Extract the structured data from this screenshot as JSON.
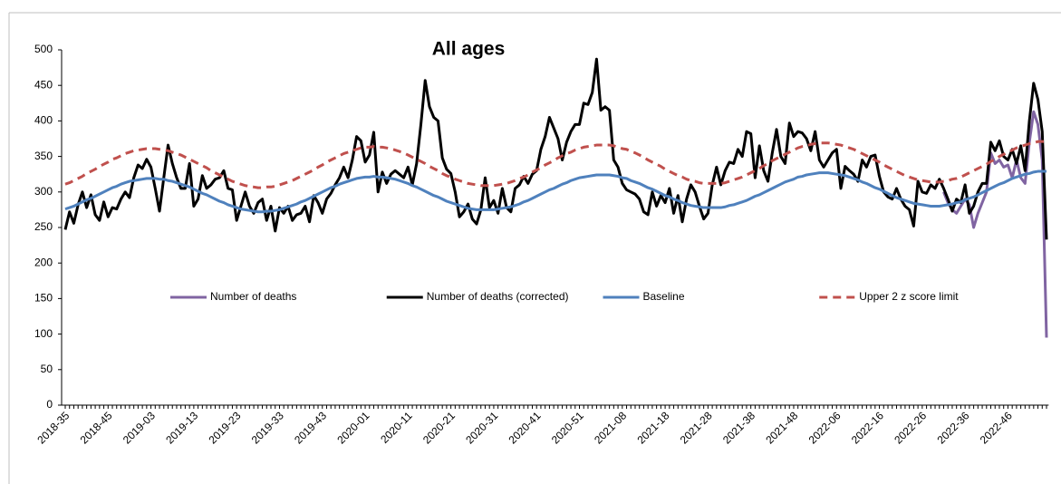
{
  "chart_data": {
    "type": "line",
    "title": "All ages",
    "categories": [
      "2018-35",
      null,
      null,
      null,
      null,
      null,
      null,
      null,
      null,
      null,
      "2018-45",
      null,
      null,
      null,
      null,
      null,
      null,
      null,
      null,
      null,
      "2019-03",
      null,
      null,
      null,
      null,
      null,
      null,
      null,
      null,
      null,
      "2019-13",
      null,
      null,
      null,
      null,
      null,
      null,
      null,
      null,
      null,
      "2019-23",
      null,
      null,
      null,
      null,
      null,
      null,
      null,
      null,
      null,
      "2019-33",
      null,
      null,
      null,
      null,
      null,
      null,
      null,
      null,
      null,
      "2019-43",
      null,
      null,
      null,
      null,
      null,
      null,
      null,
      null,
      null,
      "2020-01",
      null,
      null,
      null,
      null,
      null,
      null,
      null,
      null,
      null,
      "2020-11",
      null,
      null,
      null,
      null,
      null,
      null,
      null,
      null,
      null,
      "2020-21",
      null,
      null,
      null,
      null,
      null,
      null,
      null,
      null,
      null,
      "2020-31",
      null,
      null,
      null,
      null,
      null,
      null,
      null,
      null,
      null,
      "2020-41",
      null,
      null,
      null,
      null,
      null,
      null,
      null,
      null,
      null,
      "2020-51",
      null,
      null,
      null,
      null,
      null,
      null,
      null,
      null,
      null,
      "2021-08",
      null,
      null,
      null,
      null,
      null,
      null,
      null,
      null,
      null,
      "2021-18",
      null,
      null,
      null,
      null,
      null,
      null,
      null,
      null,
      null,
      "2021-28",
      null,
      null,
      null,
      null,
      null,
      null,
      null,
      null,
      null,
      "2021-38",
      null,
      null,
      null,
      null,
      null,
      null,
      null,
      null,
      null,
      "2021-48",
      null,
      null,
      null,
      null,
      null,
      null,
      null,
      null,
      null,
      "2022-06",
      null,
      null,
      null,
      null,
      null,
      null,
      null,
      null,
      null,
      "2022-16",
      null,
      null,
      null,
      null,
      null,
      null,
      null,
      null,
      null,
      "2022-26",
      null,
      null,
      null,
      null,
      null,
      null,
      null,
      null,
      null,
      "2022-36",
      null,
      null,
      null,
      null,
      null,
      null,
      null,
      null,
      null,
      "2022-46",
      null,
      null,
      null,
      null,
      null,
      null,
      null,
      null,
      null
    ],
    "series": [
      {
        "name": "Number of deaths",
        "color": "#8064a2",
        "style": "solid",
        "values": [
          null,
          null,
          null,
          null,
          null,
          null,
          null,
          null,
          null,
          null,
          null,
          null,
          null,
          null,
          null,
          null,
          null,
          null,
          null,
          null,
          null,
          null,
          null,
          null,
          null,
          null,
          null,
          null,
          null,
          null,
          null,
          null,
          null,
          null,
          null,
          null,
          null,
          null,
          null,
          null,
          null,
          null,
          null,
          null,
          null,
          null,
          null,
          null,
          null,
          null,
          null,
          null,
          null,
          null,
          null,
          null,
          null,
          null,
          null,
          null,
          null,
          null,
          null,
          null,
          null,
          null,
          null,
          null,
          null,
          null,
          null,
          null,
          null,
          null,
          null,
          null,
          null,
          null,
          null,
          null,
          null,
          null,
          null,
          null,
          null,
          null,
          null,
          null,
          null,
          null,
          null,
          null,
          null,
          null,
          null,
          null,
          null,
          null,
          null,
          null,
          null,
          null,
          null,
          null,
          null,
          null,
          null,
          null,
          null,
          null,
          null,
          null,
          null,
          null,
          null,
          null,
          null,
          null,
          null,
          null,
          null,
          null,
          null,
          null,
          null,
          null,
          null,
          null,
          null,
          null,
          null,
          null,
          null,
          null,
          null,
          null,
          null,
          null,
          null,
          null,
          null,
          null,
          null,
          null,
          null,
          null,
          null,
          null,
          null,
          null,
          null,
          null,
          null,
          null,
          null,
          null,
          null,
          null,
          null,
          null,
          null,
          null,
          null,
          null,
          null,
          null,
          null,
          null,
          null,
          null,
          null,
          null,
          null,
          null,
          null,
          null,
          null,
          null,
          null,
          null,
          null,
          null,
          null,
          null,
          null,
          null,
          null,
          null,
          null,
          null,
          null,
          null,
          null,
          null,
          null,
          null,
          null,
          null,
          null,
          null,
          null,
          null,
          null,
          null,
          null,
          300,
          285,
          275,
          270,
          280,
          290,
          282,
          250,
          270,
          285,
          300,
          355,
          340,
          345,
          335,
          338,
          320,
          345,
          320,
          312,
          370,
          413,
          395,
          345,
          95
        ]
      },
      {
        "name": "Number of deaths (corrected)",
        "color": "#000000",
        "style": "solid",
        "values": [
          247,
          272,
          256,
          282,
          300,
          278,
          296,
          268,
          260,
          286,
          265,
          278,
          276,
          290,
          300,
          292,
          320,
          338,
          333,
          346,
          335,
          305,
          273,
          320,
          366,
          340,
          320,
          305,
          305,
          340,
          280,
          290,
          323,
          305,
          310,
          318,
          320,
          330,
          305,
          303,
          260,
          280,
          300,
          280,
          270,
          285,
          290,
          260,
          280,
          245,
          278,
          270,
          280,
          260,
          268,
          270,
          280,
          258,
          295,
          285,
          270,
          290,
          298,
          310,
          320,
          335,
          320,
          345,
          378,
          372,
          342,
          352,
          384,
          300,
          328,
          312,
          325,
          330,
          325,
          320,
          335,
          310,
          340,
          395,
          457,
          420,
          405,
          400,
          348,
          332,
          326,
          300,
          265,
          272,
          283,
          262,
          255,
          275,
          320,
          278,
          288,
          270,
          305,
          278,
          272,
          305,
          310,
          322,
          312,
          325,
          330,
          360,
          378,
          405,
          390,
          375,
          345,
          370,
          385,
          395,
          395,
          425,
          423,
          440,
          487,
          415,
          420,
          415,
          345,
          335,
          312,
          303,
          300,
          297,
          290,
          272,
          268,
          300,
          280,
          295,
          285,
          305,
          270,
          295,
          258,
          290,
          310,
          300,
          280,
          262,
          270,
          310,
          335,
          310,
          330,
          342,
          340,
          360,
          350,
          385,
          382,
          320,
          365,
          330,
          315,
          355,
          388,
          350,
          340,
          397,
          378,
          385,
          383,
          375,
          358,
          385,
          345,
          335,
          345,
          355,
          360,
          305,
          336,
          330,
          325,
          315,
          345,
          335,
          350,
          352,
          322,
          300,
          293,
          290,
          305,
          290,
          280,
          275,
          252,
          315,
          300,
          298,
          310,
          305,
          318,
          305,
          290,
          273,
          290,
          285,
          310,
          270,
          280,
          300,
          312,
          312,
          370,
          358,
          372,
          350,
          345,
          360,
          340,
          365,
          330,
          400,
          453,
          430,
          385,
          233
        ]
      },
      {
        "name": "Baseline",
        "color": "#4f81bd",
        "style": "solid",
        "values": [
          276,
          278,
          280,
          283,
          286,
          289,
          291,
          294,
          297,
          300,
          303,
          306,
          308,
          311,
          313,
          315,
          316,
          317,
          318,
          319,
          319,
          319,
          318,
          318,
          316,
          315,
          313,
          311,
          309,
          307,
          304,
          301,
          298,
          296,
          293,
          290,
          287,
          285,
          282,
          280,
          278,
          276,
          275,
          274,
          273,
          272,
          272,
          273,
          273,
          274,
          275,
          277,
          279,
          281,
          283,
          286,
          288,
          291,
          294,
          297,
          300,
          303,
          306,
          308,
          311,
          313,
          315,
          317,
          319,
          320,
          321,
          321,
          322,
          321,
          321,
          320,
          319,
          318,
          316,
          314,
          312,
          309,
          307,
          304,
          301,
          298,
          295,
          293,
          290,
          287,
          285,
          283,
          281,
          279,
          277,
          276,
          275,
          275,
          275,
          275,
          275,
          276,
          277,
          278,
          279,
          281,
          283,
          286,
          288,
          291,
          294,
          297,
          300,
          303,
          305,
          308,
          311,
          313,
          316,
          318,
          320,
          321,
          322,
          323,
          324,
          324,
          324,
          324,
          323,
          322,
          320,
          319,
          316,
          314,
          312,
          309,
          306,
          304,
          301,
          298,
          295,
          293,
          290,
          288,
          285,
          283,
          281,
          280,
          279,
          278,
          278,
          278,
          278,
          278,
          279,
          281,
          282,
          284,
          286,
          288,
          291,
          294,
          296,
          299,
          302,
          305,
          308,
          311,
          314,
          316,
          318,
          321,
          322,
          324,
          325,
          326,
          327,
          327,
          327,
          326,
          325,
          324,
          323,
          321,
          319,
          317,
          314,
          312,
          309,
          306,
          304,
          301,
          298,
          295,
          292,
          290,
          288,
          286,
          284,
          283,
          282,
          281,
          280,
          280,
          280,
          281,
          282,
          283,
          285,
          286,
          289,
          291,
          293,
          296,
          299,
          302,
          305,
          308,
          311,
          313,
          316,
          319,
          321,
          323,
          325,
          326,
          328,
          329,
          329,
          329
        ]
      },
      {
        "name": "Upper 2 z score limit",
        "color": "#c0504d",
        "style": "dashed",
        "values": [
          311,
          313,
          316,
          319,
          322,
          326,
          329,
          332,
          336,
          339,
          342,
          346,
          348,
          351,
          354,
          356,
          358,
          359,
          360,
          361,
          361,
          361,
          360,
          359,
          358,
          356,
          354,
          352,
          349,
          346,
          343,
          340,
          337,
          334,
          330,
          327,
          324,
          321,
          318,
          315,
          313,
          311,
          309,
          308,
          307,
          306,
          306,
          307,
          307,
          308,
          310,
          312,
          314,
          316,
          319,
          322,
          325,
          328,
          331,
          335,
          338,
          342,
          345,
          348,
          351,
          354,
          356,
          358,
          360,
          362,
          363,
          363,
          364,
          363,
          363,
          362,
          361,
          359,
          357,
          355,
          352,
          349,
          346,
          343,
          340,
          336,
          333,
          330,
          326,
          323,
          321,
          318,
          316,
          314,
          312,
          311,
          310,
          309,
          309,
          309,
          309,
          310,
          311,
          312,
          314,
          316,
          319,
          321,
          324,
          328,
          331,
          334,
          338,
          341,
          344,
          348,
          351,
          354,
          356,
          359,
          361,
          363,
          364,
          365,
          366,
          366,
          366,
          366,
          365,
          363,
          361,
          360,
          357,
          355,
          352,
          349,
          345,
          342,
          339,
          336,
          332,
          329,
          326,
          323,
          321,
          318,
          316,
          315,
          313,
          312,
          312,
          312,
          312,
          312,
          313,
          315,
          317,
          319,
          321,
          324,
          327,
          330,
          333,
          337,
          340,
          344,
          347,
          350,
          353,
          356,
          359,
          362,
          364,
          365,
          367,
          368,
          369,
          369,
          369,
          368,
          367,
          366,
          364,
          362,
          360,
          357,
          354,
          351,
          348,
          345,
          342,
          338,
          335,
          332,
          329,
          326,
          323,
          321,
          319,
          317,
          316,
          315,
          314,
          314,
          314,
          315,
          316,
          318,
          319,
          321,
          324,
          327,
          330,
          333,
          336,
          339,
          343,
          346,
          350,
          353,
          356,
          359,
          362,
          364,
          366,
          368,
          369,
          371,
          371,
          371
        ]
      }
    ],
    "ylim": [
      0,
      500
    ],
    "yticks": [
      0,
      50,
      100,
      150,
      200,
      250,
      300,
      350,
      400,
      450,
      500
    ],
    "grid": false,
    "legend": "center"
  }
}
